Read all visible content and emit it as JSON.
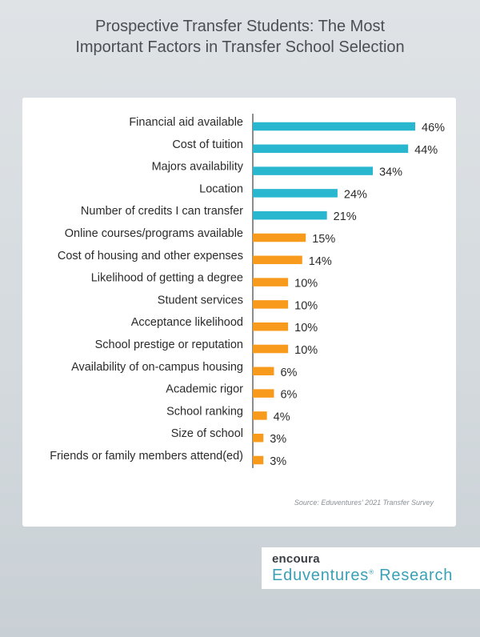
{
  "header": {
    "title_line1": "Prospective Transfer Students: The Most",
    "title_line2": "Important Factors in Transfer School Selection"
  },
  "colors": {
    "top_factor_bar": "#29b6cf",
    "other_factor_bar": "#f89a1c",
    "axis_line": "#1a1a1a",
    "label_text": "#2b2b2b"
  },
  "chart_data": {
    "type": "bar",
    "orientation": "horizontal",
    "categories": [
      "Financial aid available",
      "Cost of tuition",
      "Majors availability",
      "Location",
      "Number of credits I can transfer",
      "Online courses/programs available",
      "Cost of housing and other expenses",
      "Likelihood of getting a degree",
      "Student services",
      "Acceptance likelihood",
      "School prestige or reputation",
      "Availability of on-campus housing",
      "Academic rigor",
      "School ranking",
      "Size of school",
      "Friends or family members attend(ed)"
    ],
    "values": [
      46,
      44,
      34,
      24,
      21,
      15,
      14,
      10,
      10,
      10,
      10,
      6,
      6,
      4,
      3,
      3
    ],
    "value_labels": [
      "46%",
      "44%",
      "34%",
      "24%",
      "21%",
      "15%",
      "14%",
      "10%",
      "10%",
      "10%",
      "10%",
      "6%",
      "6%",
      "4%",
      "3%",
      "3%"
    ],
    "highlighted_count": 5,
    "xlim": [
      0,
      46
    ],
    "grid": false,
    "source": "Source: Eduventures' 2021 Transfer Survey"
  },
  "logo": {
    "brand": "encoura",
    "name": "Eduventures",
    "suffix": "Research",
    "mark": "®"
  }
}
